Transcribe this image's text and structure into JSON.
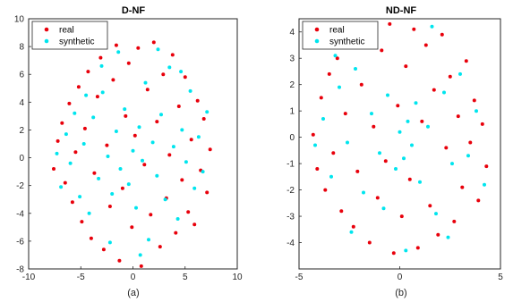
{
  "chart_data": [
    {
      "type": "scatter",
      "title": "D-NF",
      "caption": "(a)",
      "xlim": [
        -10,
        10
      ],
      "ylim": [
        -8,
        10
      ],
      "xticks": [
        "-10",
        "-5",
        "0",
        "5",
        "10"
      ],
      "yticks": [
        "-8",
        "-6",
        "-4",
        "-2",
        "0",
        "2",
        "4",
        "6",
        "8",
        "10"
      ],
      "legend": {
        "placement": "top-left",
        "entries": [
          "real",
          "synthetic"
        ]
      },
      "grid": false,
      "series": [
        {
          "name": "real",
          "color": "#e8000b",
          "points": [
            [
              -7.6,
              -0.8
            ],
            [
              -7.2,
              1.2
            ],
            [
              -6.8,
              2.5
            ],
            [
              -6.5,
              -1.8
            ],
            [
              -6.1,
              3.9
            ],
            [
              -5.8,
              -3.2
            ],
            [
              -5.5,
              0.4
            ],
            [
              -5.2,
              5.1
            ],
            [
              -4.9,
              -4.6
            ],
            [
              -4.6,
              2.1
            ],
            [
              -4.3,
              6.2
            ],
            [
              -4.0,
              -5.8
            ],
            [
              -3.7,
              -1.1
            ],
            [
              -3.4,
              4.4
            ],
            [
              -3.1,
              7.2
            ],
            [
              -2.8,
              -6.6
            ],
            [
              -2.5,
              0.9
            ],
            [
              -2.2,
              -3.5
            ],
            [
              -1.9,
              5.6
            ],
            [
              -1.6,
              8.1
            ],
            [
              -1.3,
              -7.4
            ],
            [
              -1.0,
              -2.2
            ],
            [
              -0.7,
              3.0
            ],
            [
              -0.4,
              6.8
            ],
            [
              -0.1,
              -5.0
            ],
            [
              0.2,
              1.6
            ],
            [
              0.5,
              7.9
            ],
            [
              0.8,
              -7.8
            ],
            [
              1.1,
              -0.5
            ],
            [
              1.4,
              4.9
            ],
            [
              1.7,
              -4.1
            ],
            [
              2.0,
              8.3
            ],
            [
              2.3,
              2.6
            ],
            [
              2.6,
              -6.4
            ],
            [
              2.9,
              6.0
            ],
            [
              3.2,
              -2.9
            ],
            [
              3.5,
              0.2
            ],
            [
              3.8,
              7.4
            ],
            [
              4.1,
              -5.4
            ],
            [
              4.4,
              3.7
            ],
            [
              4.7,
              -1.6
            ],
            [
              5.0,
              5.8
            ],
            [
              5.3,
              -3.9
            ],
            [
              5.6,
              1.3
            ],
            [
              5.9,
              -4.8
            ],
            [
              6.2,
              4.1
            ],
            [
              6.5,
              -0.9
            ],
            [
              6.8,
              2.8
            ],
            [
              7.1,
              -2.5
            ],
            [
              7.4,
              0.6
            ]
          ]
        },
        {
          "name": "synthetic",
          "color": "#00e5ee",
          "points": [
            [
              -7.3,
              0.3
            ],
            [
              -6.9,
              -2.1
            ],
            [
              -6.4,
              1.7
            ],
            [
              -6.0,
              -0.4
            ],
            [
              -5.6,
              3.2
            ],
            [
              -5.1,
              -2.8
            ],
            [
              -4.7,
              1.0
            ],
            [
              -4.2,
              -4.0
            ],
            [
              -3.8,
              2.9
            ],
            [
              -3.3,
              -1.5
            ],
            [
              -2.9,
              4.7
            ],
            [
              -2.4,
              0.1
            ],
            [
              -2.0,
              -2.6
            ],
            [
              -1.6,
              1.9
            ],
            [
              -1.2,
              -0.8
            ],
            [
              -0.8,
              3.5
            ],
            [
              -0.4,
              -1.9
            ],
            [
              0.0,
              0.5
            ],
            [
              0.3,
              -3.6
            ],
            [
              0.6,
              2.2
            ],
            [
              0.9,
              -0.2
            ],
            [
              1.2,
              5.4
            ],
            [
              1.5,
              -5.9
            ],
            [
              1.9,
              1.1
            ],
            [
              2.3,
              -1.3
            ],
            [
              2.7,
              3.1
            ],
            [
              3.1,
              -3.0
            ],
            [
              3.5,
              6.5
            ],
            [
              3.9,
              0.8
            ],
            [
              4.3,
              -4.4
            ],
            [
              4.7,
              2.0
            ],
            [
              5.1,
              -0.3
            ],
            [
              5.5,
              4.8
            ],
            [
              5.9,
              -2.2
            ],
            [
              6.3,
              1.5
            ],
            [
              6.7,
              -1.0
            ],
            [
              7.1,
              3.3
            ],
            [
              -3.0,
              6.6
            ],
            [
              -1.4,
              7.6
            ],
            [
              0.7,
              -7.0
            ],
            [
              2.4,
              7.8
            ],
            [
              -2.2,
              -6.1
            ],
            [
              4.6,
              6.2
            ],
            [
              -4.5,
              4.5
            ]
          ]
        }
      ]
    },
    {
      "type": "scatter",
      "title": "ND-NF",
      "caption": "(b)",
      "xlim": [
        -5,
        5
      ],
      "ylim": [
        -5,
        4.5
      ],
      "xticks": [
        "-5",
        "0",
        "5"
      ],
      "yticks": [
        "-4",
        "-3",
        "-2",
        "-1",
        "0",
        "1",
        "2",
        "3",
        "4"
      ],
      "legend": {
        "placement": "top-left",
        "entries": [
          "real",
          "synthetic"
        ]
      },
      "grid": false,
      "series": [
        {
          "name": "real",
          "color": "#e8000b",
          "points": [
            [
              -4.3,
              0.1
            ],
            [
              -4.1,
              -1.2
            ],
            [
              -3.9,
              1.5
            ],
            [
              -3.7,
              -2.0
            ],
            [
              -3.5,
              2.4
            ],
            [
              -3.3,
              -0.6
            ],
            [
              -3.1,
              3.0
            ],
            [
              -2.9,
              -2.8
            ],
            [
              -2.7,
              0.9
            ],
            [
              -2.5,
              3.6
            ],
            [
              -2.3,
              -3.4
            ],
            [
              -2.1,
              -1.3
            ],
            [
              -1.9,
              2.0
            ],
            [
              -1.7,
              4.0
            ],
            [
              -1.5,
              -4.0
            ],
            [
              -1.3,
              0.4
            ],
            [
              -1.1,
              -2.3
            ],
            [
              -0.9,
              3.3
            ],
            [
              -0.7,
              -0.9
            ],
            [
              -0.5,
              4.3
            ],
            [
              -0.3,
              -4.4
            ],
            [
              -0.1,
              1.2
            ],
            [
              0.1,
              -3.0
            ],
            [
              0.3,
              2.7
            ],
            [
              0.5,
              -1.6
            ],
            [
              0.7,
              4.1
            ],
            [
              0.9,
              -4.2
            ],
            [
              1.1,
              0.6
            ],
            [
              1.3,
              3.5
            ],
            [
              1.5,
              -2.6
            ],
            [
              1.7,
              1.8
            ],
            [
              1.9,
              -3.7
            ],
            [
              2.1,
              3.9
            ],
            [
              2.3,
              -0.4
            ],
            [
              2.5,
              2.3
            ],
            [
              2.7,
              -3.2
            ],
            [
              2.9,
              0.8
            ],
            [
              3.1,
              -1.9
            ],
            [
              3.3,
              2.9
            ],
            [
              3.5,
              -0.2
            ],
            [
              3.7,
              1.4
            ],
            [
              3.9,
              -2.4
            ],
            [
              4.1,
              0.5
            ],
            [
              4.3,
              -1.1
            ]
          ]
        },
        {
          "name": "synthetic",
          "color": "#00e5ee",
          "points": [
            [
              -4.2,
              -0.3
            ],
            [
              -3.8,
              0.7
            ],
            [
              -3.4,
              -1.5
            ],
            [
              -3.0,
              1.9
            ],
            [
              -2.6,
              -0.2
            ],
            [
              -2.2,
              2.6
            ],
            [
              -1.8,
              -2.1
            ],
            [
              -1.4,
              0.9
            ],
            [
              -1.0,
              -0.6
            ],
            [
              -0.6,
              1.6
            ],
            [
              -0.2,
              -1.2
            ],
            [
              0.0,
              0.2
            ],
            [
              0.2,
              -0.8
            ],
            [
              0.4,
              0.6
            ],
            [
              0.6,
              -0.3
            ],
            [
              0.8,
              1.3
            ],
            [
              1.0,
              -1.7
            ],
            [
              1.4,
              0.4
            ],
            [
              1.8,
              -2.9
            ],
            [
              2.2,
              1.7
            ],
            [
              2.6,
              -1.0
            ],
            [
              3.0,
              2.4
            ],
            [
              3.4,
              -0.7
            ],
            [
              3.8,
              1.0
            ],
            [
              4.2,
              -1.8
            ],
            [
              -2.4,
              -3.6
            ],
            [
              -1.2,
              3.7
            ],
            [
              0.3,
              -4.3
            ],
            [
              1.6,
              4.2
            ],
            [
              -0.8,
              -2.7
            ],
            [
              2.4,
              -3.8
            ],
            [
              -3.2,
              3.1
            ]
          ]
        }
      ]
    }
  ]
}
